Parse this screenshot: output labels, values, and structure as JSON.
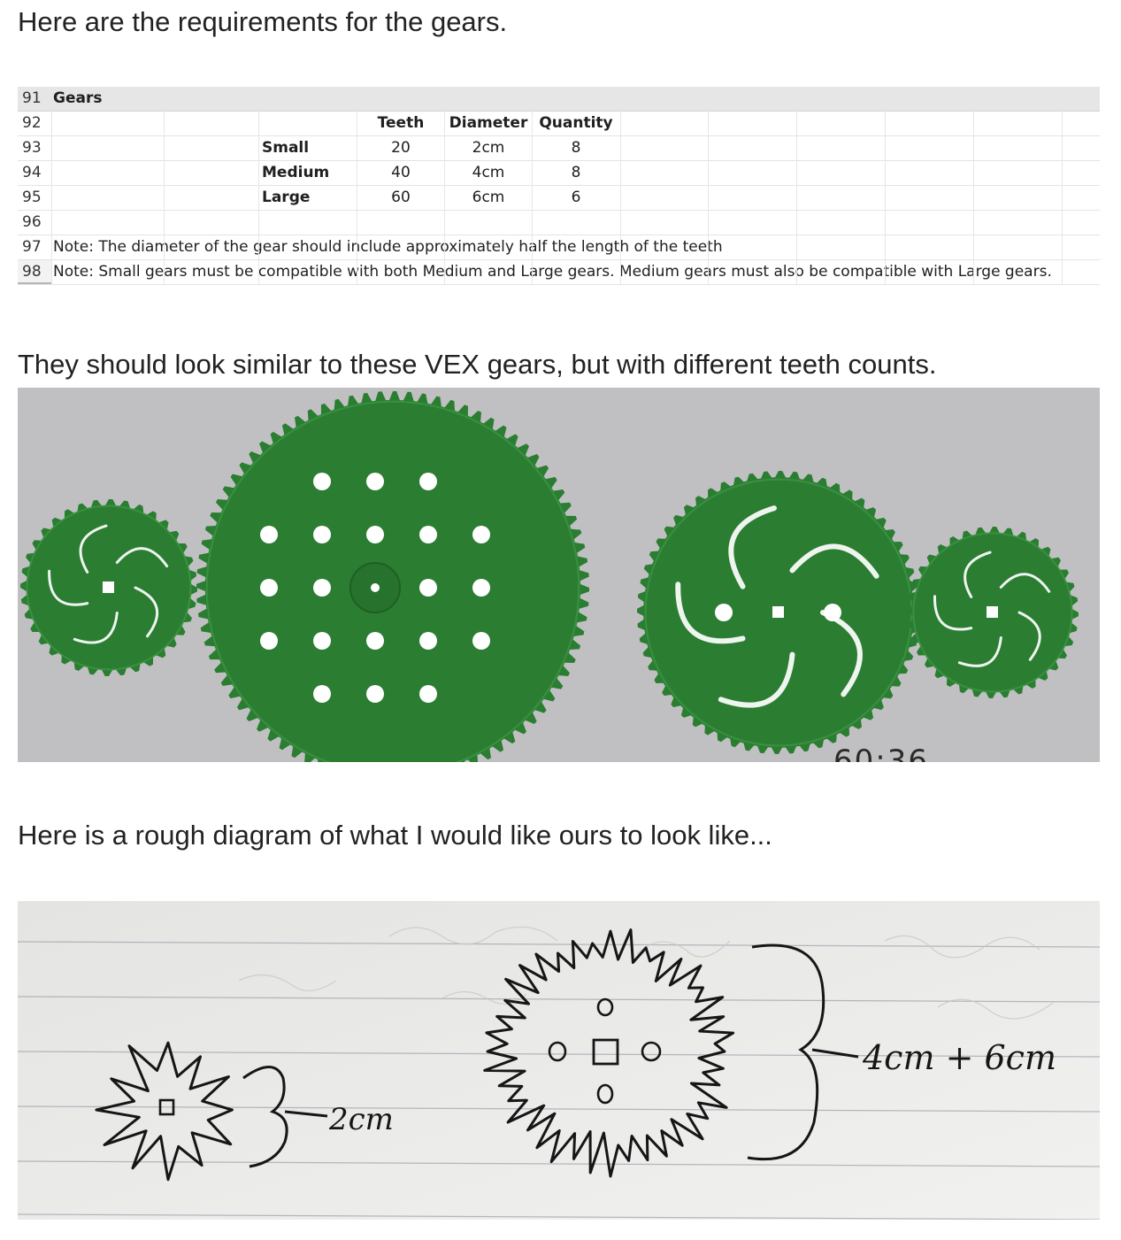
{
  "headings": {
    "requirements": "Here are the requirements for the gears.",
    "vex": "They should look similar to these VEX gears, but with different teeth counts.",
    "diagram": "Here is a rough diagram of what I would like ours to look like..."
  },
  "spreadsheet": {
    "rows": [
      "91",
      "92",
      "93",
      "94",
      "95",
      "96",
      "97",
      "98"
    ],
    "title": "Gears",
    "columns": [
      "Teeth",
      "Diameter",
      "Quantity"
    ],
    "gears": [
      {
        "name": "Small",
        "teeth": "20",
        "diameter": "2cm",
        "quantity": "8"
      },
      {
        "name": "Medium",
        "teeth": "40",
        "diameter": "4cm",
        "quantity": "8"
      },
      {
        "name": "Large",
        "teeth": "60",
        "diameter": "6cm",
        "quantity": "6"
      }
    ],
    "notes": [
      "Note: The diameter of the gear should include approximately half the length of the teeth",
      "Note: Small gears must be compatible with both Medium and Large gears.  Medium gears must also be compatible with Large gears."
    ]
  },
  "vex_photo": {
    "gear_color": "#2b7d32",
    "background_color": "#c0c0c2",
    "cut_label": "60:36"
  },
  "sketch": {
    "small_label": "2cm",
    "large_label": "4cm + 6cm"
  }
}
